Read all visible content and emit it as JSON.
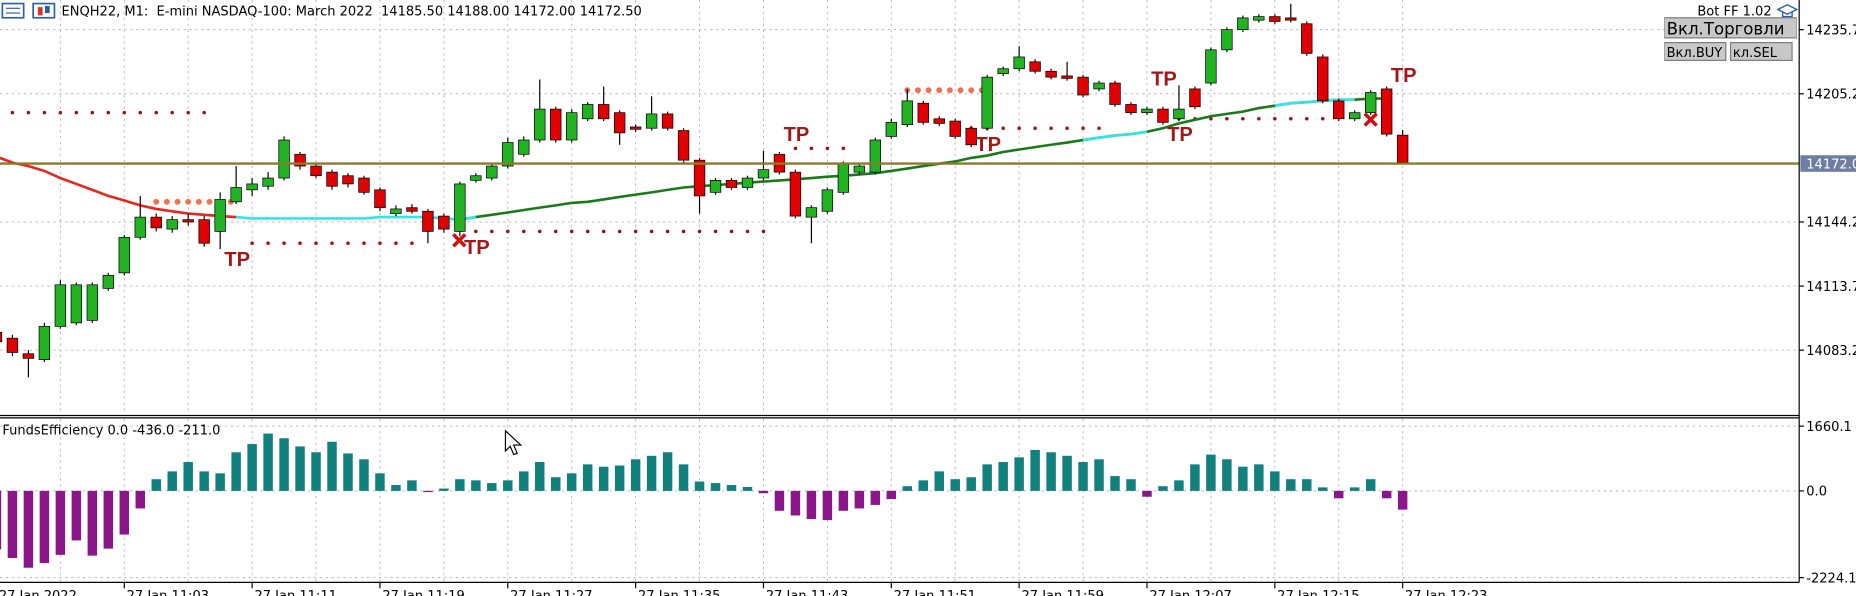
{
  "chart_data": [
    {
      "type": "candlestick",
      "title": "ENQH22, M1:  E-mini NASDAQ-100: March 2022  14185.50 14188.00 14172.00 14172.50",
      "categories": [
        "27 Jan 2022",
        null,
        null,
        null,
        null,
        null,
        null,
        null,
        "27 Jan 11:03",
        null,
        null,
        null,
        null,
        null,
        null,
        null,
        "27 Jan 11:11",
        null,
        null,
        null,
        null,
        null,
        null,
        null,
        "27 Jan 11:19",
        null,
        null,
        null,
        null,
        null,
        null,
        null,
        "27 Jan 11:27",
        null,
        null,
        null,
        null,
        null,
        null,
        null,
        "27 Jan 11:35",
        null,
        null,
        null,
        null,
        null,
        null,
        null,
        "27 Jan 11:43",
        null,
        null,
        null,
        null,
        null,
        null,
        null,
        "27 Jan 11:51",
        null,
        null,
        null,
        null,
        null,
        null,
        null,
        "27 Jan 11:59",
        null,
        null,
        null,
        null,
        null,
        null,
        null,
        "27 Jan 12:07",
        null,
        null,
        null,
        null,
        null,
        null,
        null,
        "27 Jan 12:15",
        null,
        null,
        null,
        null,
        null,
        null,
        null,
        "27 Jan 12:23"
      ],
      "ohlc": [
        [
          14091.7,
          14097.4,
          14085.0,
          14087.2
        ],
        [
          14088.9,
          14090.5,
          14080.4,
          14082.1
        ],
        [
          14081.5,
          14083.2,
          14070.3,
          14079.3
        ],
        [
          14078.7,
          14096.2,
          14077.6,
          14094.5
        ],
        [
          14094.5,
          14116.5,
          14093.4,
          14114.3
        ],
        [
          14096.2,
          14115.4,
          14095.1,
          14114.3
        ],
        [
          14097.4,
          14115.4,
          14096.2,
          14114.3
        ],
        [
          14112.6,
          14120.0,
          14111.5,
          14118.8
        ],
        [
          14120.0,
          14138.0,
          14118.8,
          14136.9
        ],
        [
          14136.9,
          14156.6,
          14135.8,
          14146.5
        ],
        [
          14146.5,
          14148.2,
          14139.7,
          14141.4
        ],
        [
          14140.8,
          14147.0,
          14139.1,
          14145.3
        ],
        [
          14145.3,
          14148.2,
          14142.5,
          14144.2
        ],
        [
          14145.3,
          14147.0,
          14132.4,
          14134.1
        ],
        [
          14139.7,
          14158.3,
          14131.3,
          14154.9
        ],
        [
          14153.8,
          14170.8,
          14152.7,
          14160.6
        ],
        [
          14159.5,
          14165.1,
          14156.6,
          14162.3
        ],
        [
          14161.2,
          14167.9,
          14159.5,
          14165.1
        ],
        [
          14165.1,
          14184.9,
          14164.0,
          14183.2
        ],
        [
          14176.4,
          14177.5,
          14169.1,
          14170.8
        ],
        [
          14170.8,
          14172.4,
          14165.1,
          14166.2
        ],
        [
          14167.9,
          14169.1,
          14159.5,
          14161.2
        ],
        [
          14166.2,
          14167.4,
          14160.6,
          14162.3
        ],
        [
          14165.1,
          14166.2,
          14157.2,
          14158.3
        ],
        [
          14159.5,
          14160.6,
          14149.3,
          14151.0
        ],
        [
          14148.2,
          14152.1,
          14147.0,
          14150.4
        ],
        [
          14151.0,
          14152.7,
          14148.2,
          14149.3
        ],
        [
          14149.3,
          14150.4,
          14134.1,
          14139.7
        ],
        [
          14147.0,
          14148.2,
          14139.1,
          14140.8
        ],
        [
          14139.7,
          14163.4,
          14137.4,
          14162.3
        ],
        [
          14164.0,
          14167.4,
          14162.9,
          14166.2
        ],
        [
          14165.1,
          14172.4,
          14164.0,
          14170.8
        ],
        [
          14170.8,
          14184.3,
          14169.6,
          14182.0
        ],
        [
          14176.4,
          14184.9,
          14175.3,
          14183.2
        ],
        [
          14183.2,
          14212.0,
          14182.0,
          14197.9
        ],
        [
          14197.9,
          14199.0,
          14182.0,
          14183.2
        ],
        [
          14183.2,
          14197.9,
          14182.0,
          14196.2
        ],
        [
          14193.3,
          14201.2,
          14192.2,
          14200.1
        ],
        [
          14200.1,
          14208.6,
          14192.2,
          14193.3
        ],
        [
          14196.2,
          14197.3,
          14180.9,
          14186.6
        ],
        [
          14189.4,
          14190.5,
          14187.1,
          14188.3
        ],
        [
          14188.8,
          14204.0,
          14187.7,
          14195.6
        ],
        [
          14195.6,
          14196.7,
          14187.7,
          14188.8
        ],
        [
          14187.7,
          14188.8,
          14172.4,
          14173.6
        ],
        [
          14173.6,
          14174.7,
          14148.2,
          14156.6
        ],
        [
          14158.3,
          14165.1,
          14157.2,
          14164.0
        ],
        [
          14164.0,
          14165.1,
          14159.5,
          14160.6
        ],
        [
          14160.6,
          14166.2,
          14159.5,
          14165.1
        ],
        [
          14165.1,
          14178.1,
          14164.0,
          14169.1
        ],
        [
          14176.4,
          14177.5,
          14166.8,
          14167.9
        ],
        [
          14167.9,
          14169.1,
          14145.9,
          14147.0
        ],
        [
          14146.5,
          14152.1,
          14134.1,
          14151.0
        ],
        [
          14149.3,
          14160.6,
          14148.2,
          14159.5
        ],
        [
          14158.3,
          14173.0,
          14157.2,
          14171.9
        ],
        [
          14167.9,
          14171.9,
          14166.8,
          14170.8
        ],
        [
          14167.9,
          14184.3,
          14166.8,
          14183.2
        ],
        [
          14184.9,
          14193.3,
          14183.8,
          14191.6
        ],
        [
          14190.5,
          14207.5,
          14189.4,
          14201.8
        ],
        [
          14200.7,
          14201.8,
          14190.5,
          14191.6
        ],
        [
          14193.3,
          14194.5,
          14189.9,
          14191.1
        ],
        [
          14192.2,
          14193.3,
          14183.8,
          14184.9
        ],
        [
          14188.8,
          14189.9,
          14179.8,
          14180.9
        ],
        [
          14188.8,
          14214.2,
          14187.7,
          14213.1
        ],
        [
          14214.8,
          14218.2,
          14213.7,
          14217.1
        ],
        [
          14217.1,
          14227.8,
          14216.0,
          14222.7
        ],
        [
          14220.4,
          14221.6,
          14214.8,
          14215.9
        ],
        [
          14215.9,
          14217.1,
          14212.0,
          14213.1
        ],
        [
          14213.7,
          14220.4,
          14211.4,
          14212.5
        ],
        [
          14213.1,
          14214.2,
          14203.5,
          14204.6
        ],
        [
          14207.5,
          14211.4,
          14206.4,
          14210.3
        ],
        [
          14210.3,
          14211.4,
          14199.0,
          14200.1
        ],
        [
          14200.1,
          14201.2,
          14195.1,
          14196.2
        ],
        [
          14196.2,
          14199.0,
          14195.1,
          14197.9
        ],
        [
          14197.9,
          14199.0,
          14190.5,
          14191.6
        ],
        [
          14193.3,
          14209.2,
          14192.2,
          14197.9
        ],
        [
          14207.5,
          14208.6,
          14197.9,
          14199.0
        ],
        [
          14210.3,
          14227.2,
          14209.2,
          14226.1
        ],
        [
          14226.1,
          14236.8,
          14225.0,
          14235.7
        ],
        [
          14235.7,
          14242.4,
          14234.6,
          14241.3
        ],
        [
          14240.2,
          14243.0,
          14239.1,
          14241.9
        ],
        [
          14241.9,
          14243.0,
          14238.5,
          14239.6
        ],
        [
          14241.3,
          14248.0,
          14239.1,
          14240.2
        ],
        [
          14238.5,
          14239.6,
          14223.3,
          14224.4
        ],
        [
          14222.7,
          14223.9,
          14200.7,
          14201.8
        ],
        [
          14201.8,
          14202.9,
          14192.2,
          14193.3
        ],
        [
          14193.3,
          14197.3,
          14192.2,
          14196.2
        ],
        [
          14196.2,
          14206.9,
          14195.1,
          14205.8
        ],
        [
          14207.5,
          14208.6,
          14184.9,
          14186.0
        ],
        [
          14185.5,
          14188.0,
          14172.0,
          14172.5
        ]
      ],
      "up_color": "#22b322",
      "down_color": "#e00000",
      "ylim": [
        14052.7,
        14249.8
      ],
      "yticks": [
        14083.2,
        14113.7,
        14144.2,
        14205.2,
        14235.7
      ],
      "current_price": {
        "value": 14172,
        "label": "14172.0"
      },
      "current_price_color": "#8b7a2b",
      "grid": true,
      "lines": [
        {
          "color": "#e8261e",
          "values": [
            14175.3,
            14172.4,
            14170.8,
            14168.5,
            14165.1,
            14162.3,
            14159.5,
            14156.6,
            14154.4,
            14152.1,
            14150.4,
            14149.3,
            14148.2,
            14147.6,
            14147.0,
            14146.5,
            null,
            null,
            null,
            null,
            null,
            null,
            null,
            null,
            null,
            null,
            null,
            null,
            null,
            null,
            null,
            null,
            null,
            null,
            null,
            null,
            null,
            null,
            null,
            null,
            null,
            null,
            null,
            null,
            null,
            null,
            null,
            null,
            null,
            null,
            null,
            null,
            null,
            null,
            null,
            null,
            null,
            null,
            null,
            null,
            null,
            null,
            null,
            null,
            null,
            null,
            null,
            null,
            null,
            null,
            null,
            null,
            null,
            null,
            null,
            null,
            null,
            null,
            null,
            null,
            null,
            null,
            null,
            null,
            null,
            null,
            null,
            null,
            null
          ]
        },
        {
          "color": "#1a7a1a",
          "values": [
            null,
            null,
            null,
            null,
            null,
            null,
            null,
            null,
            null,
            null,
            null,
            null,
            null,
            null,
            null,
            null,
            null,
            null,
            null,
            null,
            null,
            null,
            null,
            null,
            null,
            null,
            null,
            null,
            null,
            14145.3,
            14146.5,
            14147.6,
            14148.7,
            14149.9,
            14151.0,
            14152.1,
            14153.3,
            14153.8,
            14154.9,
            14156.1,
            14157.2,
            14158.3,
            14159.5,
            14160.6,
            14161.2,
            14161.7,
            14162.3,
            14162.9,
            14163.4,
            14164.0,
            14164.5,
            14165.1,
            14165.7,
            14166.2,
            14166.8,
            14167.4,
            14168.5,
            14169.6,
            14170.8,
            14171.9,
            14173.0,
            14174.7,
            14175.8,
            14177.5,
            14178.7,
            14179.8,
            14180.9,
            14182.0,
            14183.2,
            14184.3,
            14185.4,
            14186.0,
            14187.1,
            14188.8,
            14191.1,
            14192.8,
            14194.5,
            14195.6,
            14196.7,
            14198.4,
            14199.5,
            14200.7,
            14201.2,
            14201.8,
            14202.4,
            14202.4,
            14202.9,
            14202.9,
            null
          ]
        },
        {
          "color": "#33e6e6",
          "values": [
            null,
            null,
            null,
            null,
            null,
            null,
            null,
            null,
            null,
            null,
            null,
            null,
            null,
            null,
            null,
            14146.5,
            14145.9,
            14145.9,
            14145.9,
            14145.9,
            14145.9,
            14145.9,
            14145.9,
            14145.9,
            14146.5,
            14146.5,
            14146.5,
            14146.5,
            14145.9,
            14145.3,
            14146.5,
            null,
            null,
            null,
            null,
            null,
            null,
            null,
            null,
            null,
            null,
            null,
            null,
            null,
            null,
            null,
            null,
            null,
            null,
            null,
            null,
            null,
            null,
            null,
            null,
            null,
            null,
            null,
            null,
            null,
            null,
            null,
            null,
            null,
            null,
            null,
            null,
            null,
            14183.2,
            14184.3,
            14185.4,
            14186.0,
            14187.1,
            null,
            null,
            null,
            null,
            null,
            null,
            null,
            14199.5,
            14200.7,
            14201.2,
            14201.8,
            14202.4,
            14202.4,
            null,
            null,
            null
          ]
        }
      ],
      "levels": [
        {
          "value": 14196.2,
          "from": 1,
          "to": 14,
          "color": "#a01010"
        },
        {
          "value": 14134.1,
          "from": 16,
          "to": 27,
          "color": "#a01010"
        },
        {
          "value": 14139.7,
          "from": 30,
          "to": 49,
          "color": "#a01010"
        },
        {
          "value": 14179.2,
          "from": 50,
          "to": 54,
          "color": "#a01010"
        },
        {
          "value": 14188.8,
          "from": 60,
          "to": 70,
          "color": "#a01010"
        },
        {
          "value": 14193.3,
          "from": 74,
          "to": 84,
          "color": "#a01010"
        },
        {
          "value": 14153.8,
          "from": 10,
          "to": 15,
          "color": "#f07050"
        },
        {
          "value": 14206.9,
          "from": 57,
          "to": 62,
          "color": "#f07050"
        }
      ],
      "annotations": [
        {
          "text": "TP",
          "x": 15,
          "y": 14127.3,
          "color": "#a01818"
        },
        {
          "text": "TP",
          "x": 30,
          "y": 14133.0,
          "color": "#a01818"
        },
        {
          "text": "TP",
          "x": 50,
          "y": 14186.6,
          "color": "#a01818"
        },
        {
          "text": "TP",
          "x": 62,
          "y": 14182.0,
          "color": "#a01818"
        },
        {
          "text": "TP",
          "x": 73,
          "y": 14213.1,
          "color": "#a01818"
        },
        {
          "text": "TP",
          "x": 74,
          "y": 14186.6,
          "color": "#a01818"
        },
        {
          "text": "TP",
          "x": 88,
          "y": 14214.8,
          "color": "#a01818"
        }
      ]
    },
    {
      "type": "histogram_bars",
      "title": "FundsEfficiency 0.0 -436.0 -211.0",
      "values": [
        -1500,
        -1720,
        -1970,
        -1850,
        -1640,
        -1270,
        -1660,
        -1480,
        -1120,
        -450,
        300,
        500,
        740,
        500,
        450,
        990,
        1200,
        1470,
        1350,
        1140,
        990,
        1260,
        960,
        810,
        450,
        150,
        270,
        -30,
        60,
        300,
        270,
        200,
        270,
        500,
        740,
        350,
        450,
        680,
        620,
        650,
        810,
        900,
        990,
        680,
        240,
        200,
        150,
        100,
        -60,
        -510,
        -630,
        -720,
        -750,
        -510,
        -450,
        -360,
        -210,
        120,
        270,
        500,
        300,
        350,
        680,
        740,
        860,
        1050,
        990,
        900,
        740,
        810,
        380,
        300,
        -150,
        120,
        270,
        680,
        930,
        810,
        620,
        680,
        500,
        300,
        300,
        90,
        -190,
        90,
        300,
        -190,
        -480
      ],
      "positive_color": "#12807f",
      "negative_color": "#8a168a",
      "ylim": [
        -2345.5,
        1872.5
      ],
      "yticks": [
        -2224.1,
        {
          "value": 0,
          "label": "0.0"
        },
        1660.1
      ],
      "grid": true
    }
  ],
  "controls": {
    "bot_name": "Bot FF 1.02",
    "buttons": [
      "Вкл.Торговли",
      "Вкл.BUY",
      "кл.SEL"
    ]
  }
}
